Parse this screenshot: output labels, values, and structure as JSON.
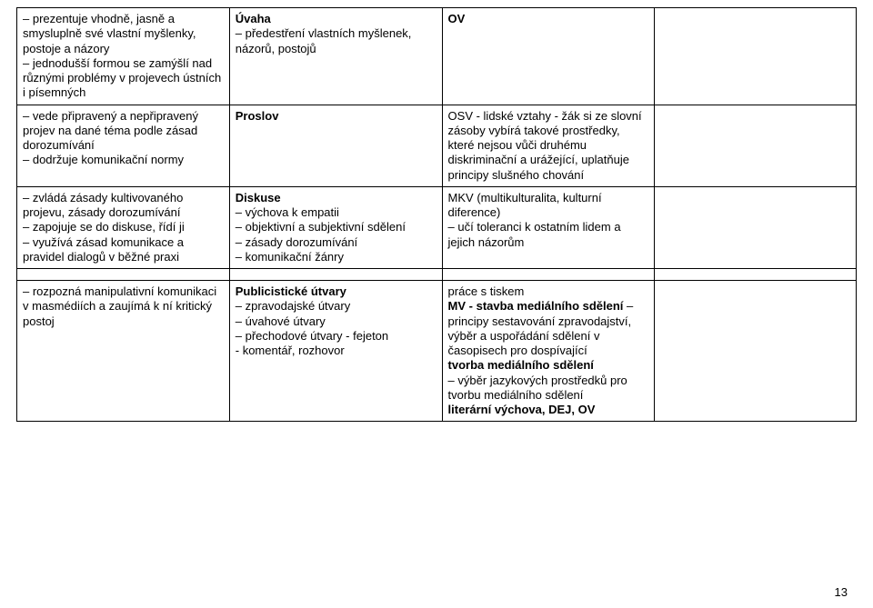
{
  "rows": [
    {
      "c1": "– prezentuje vhodně, jasně a smysluplně své vlastní myšlenky, postoje a názory\n– jednodušší formou se zamýšlí nad různými problémy v projevech ústních i písemných",
      "c2_heading": "Úvaha",
      "c2_body": "– předestření vlastních myšlenek, názorů, postojů",
      "c3_heading": "OV",
      "c3_body": "",
      "c4": ""
    },
    {
      "c1": "– vede připravený a nepřipravený projev na dané téma podle zásad dorozumívání\n– dodržuje komunikační normy",
      "c2_heading": "Proslov",
      "c2_body": "",
      "c3_heading": "",
      "c3_body": "OSV - lidské vztahy - žák si ze slovní zásoby vybírá takové prostředky, které nejsou vůči druhému diskriminační a urážející, uplatňuje principy slušného chování",
      "c4": ""
    },
    {
      "c1": "– zvládá zásady kultivovaného projevu, zásady dorozumívání\n– zapojuje se do diskuse, řídí ji\n– využívá zásad komunikace a pravidel dialogů v běžné praxi",
      "c2_heading": "Diskuse",
      "c2_body": "– výchova k empatii\n– objektivní a subjektivní sdělení\n– zásady dorozumívání\n– komunikační žánry",
      "c3_heading": "",
      "c3_body": "MKV (multikulturalita, kulturní diference)\n– učí toleranci k ostatním lidem a jejich názorům",
      "c4": ""
    },
    {
      "c1": "– rozpozná manipulativní komunikaci v masmédiích a zaujímá k ní kritický postoj",
      "c2_heading": "Publicistické útvary",
      "c2_body": "– zpravodajské útvary\n– úvahové útvary\n– přechodové útvary  - fejeton\n- komentář, rozhovor",
      "c3_heading": "",
      "c3_body_html": "práce s tiskem\n<b>MV - stavba mediálního sdělení</b> – principy sestavování zpravodajství, výběr a uspořádání sdělení v časopisech pro dospívající\n<b>tvorba mediálního sdělení</b>\n– výběr jazykových prostředků pro tvorbu mediálního sdělení\n<b>literární výchova, DEJ, OV</b>",
      "c4": ""
    }
  ],
  "pagenum": "13"
}
